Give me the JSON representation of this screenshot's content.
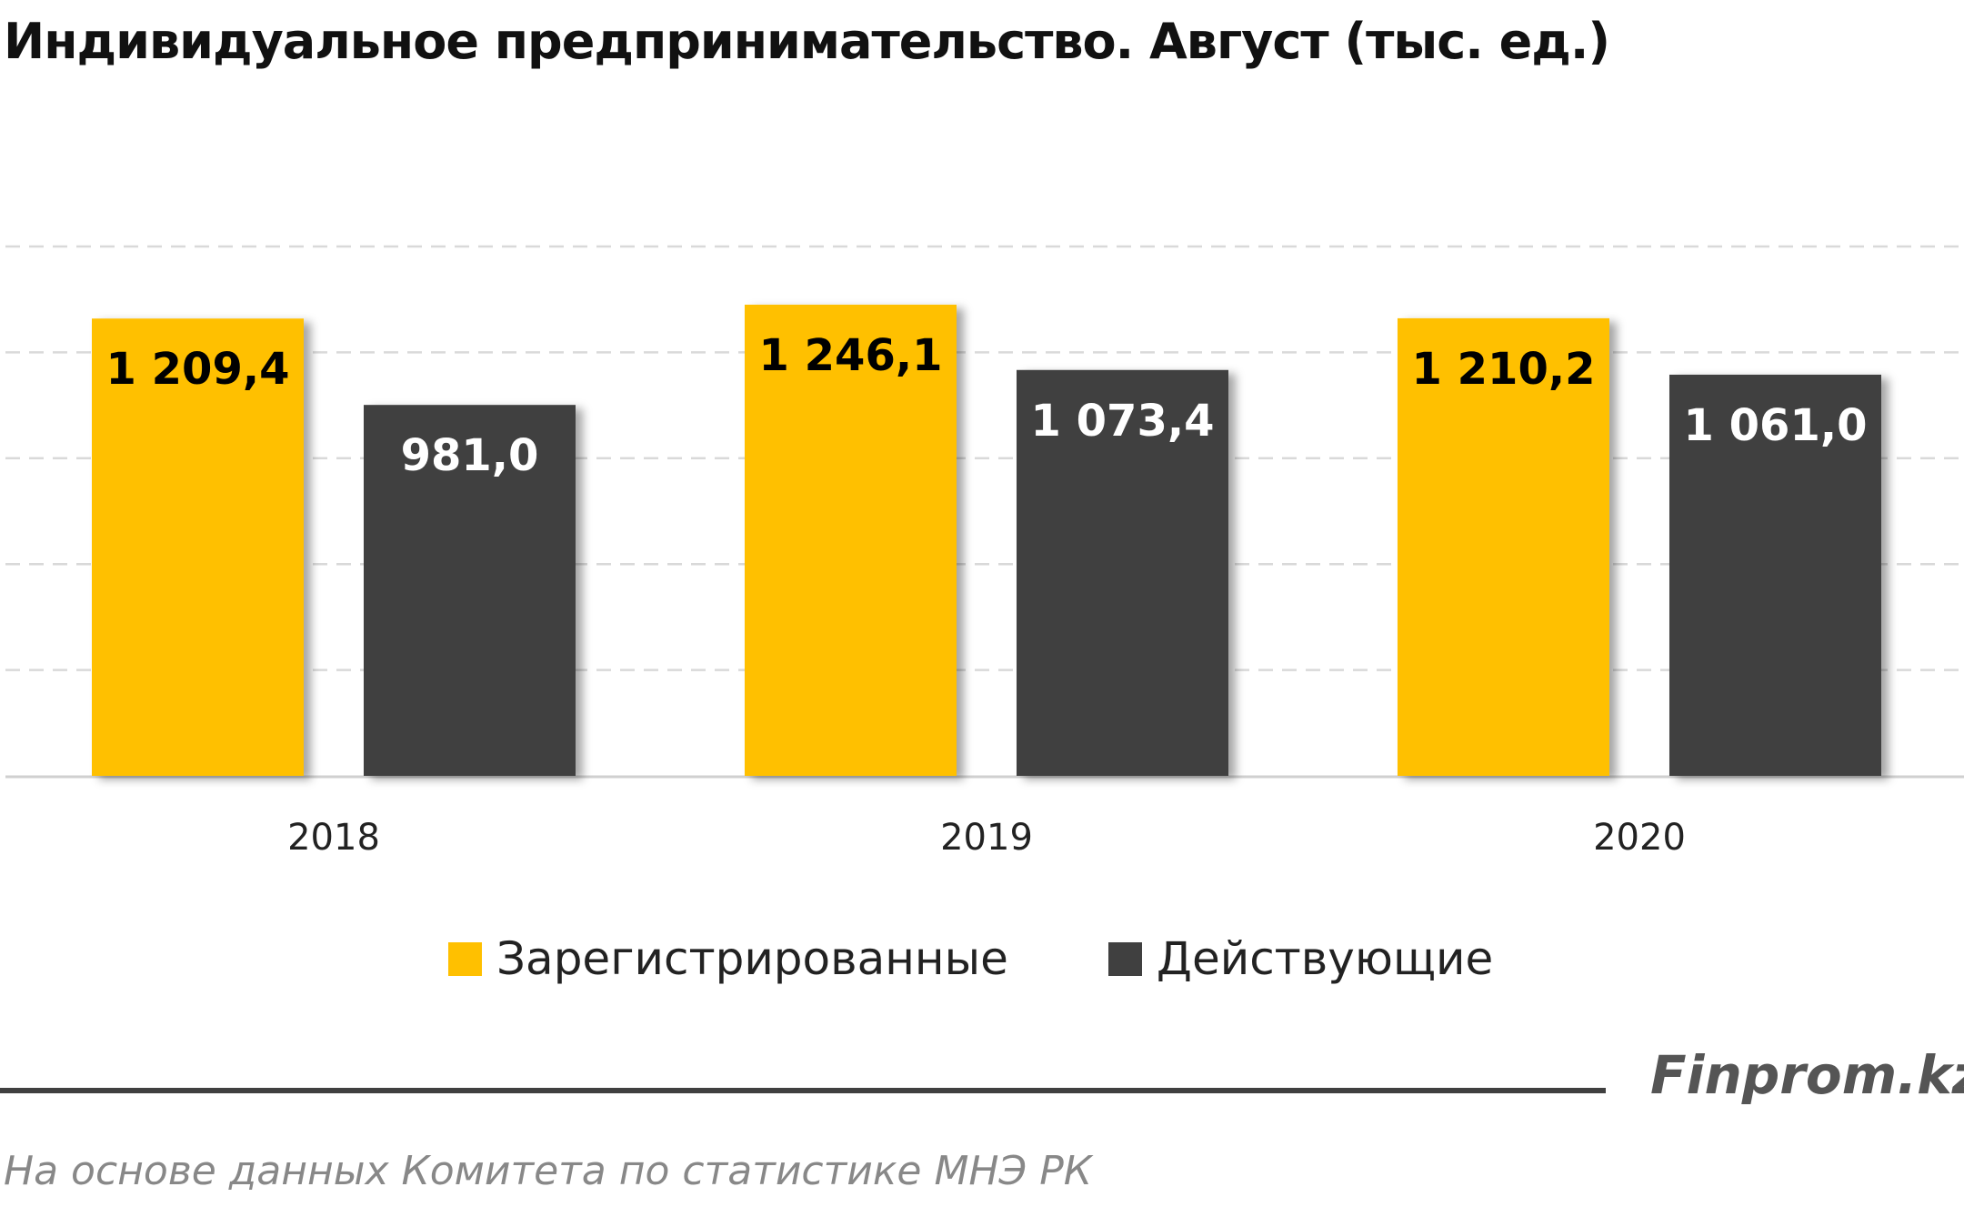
{
  "chart_data": {
    "type": "bar",
    "title": "Индивидуальное предпринимательство. Август (тыс. ед.)",
    "categories": [
      "2018",
      "2019",
      "2020"
    ],
    "series": [
      {
        "name": "Зарегистрированные",
        "color": "#FFC000",
        "label_color": "#000000",
        "values": [
          1209.4,
          1246.1,
          1210.2
        ],
        "labels": [
          "1 209,4",
          "1 246,1",
          "1 210,2"
        ]
      },
      {
        "name": "Действующие",
        "color": "#404040",
        "label_color": "#FFFFFF",
        "values": [
          981.0,
          1073.4,
          1061.0
        ],
        "labels": [
          "981,0",
          "1 073,4",
          "1 061,0"
        ]
      }
    ],
    "xlabel": "",
    "ylabel": "",
    "ylim": [
      0,
      1400
    ],
    "grid": true,
    "grid_style": "dashed",
    "legend_position": "bottom"
  },
  "footer": {
    "brand": "Finprom.kz",
    "source": "На основе данных  Комитета по статистике МНЭ РК"
  }
}
